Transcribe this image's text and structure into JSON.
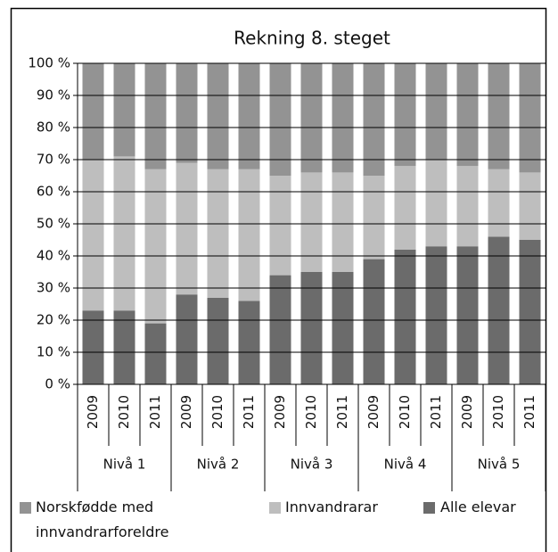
{
  "chart_data": {
    "type": "stacked_bar",
    "title": "Rekning 8. steget",
    "categories": [
      "2009",
      "2010",
      "2011",
      "2009",
      "2010",
      "2011",
      "2009",
      "2010",
      "2011",
      "2009",
      "2010",
      "2011",
      "2009",
      "2010",
      "2011"
    ],
    "groups": [
      "Nivå 1",
      "Nivå 2",
      "Nivå 3",
      "Nivå 4",
      "Nivå 5"
    ],
    "series": [
      {
        "name": "Norskfødde med innvandrarforeldre",
        "color": "#939393",
        "values": [
          30,
          29,
          33,
          31,
          33,
          33,
          35,
          34,
          34,
          35,
          32,
          30,
          32,
          33,
          34
        ]
      },
      {
        "name": "Innvandrarar",
        "color": "#bebebe",
        "values": [
          47,
          48,
          48,
          41,
          40,
          41,
          31,
          31,
          31,
          26,
          26,
          27,
          25,
          21,
          21
        ]
      },
      {
        "name": "Alle elevar",
        "color": "#6b6b6b",
        "values": [
          23,
          23,
          19,
          28,
          27,
          26,
          34,
          35,
          35,
          39,
          42,
          43,
          43,
          46,
          45
        ]
      }
    ],
    "ylim": [
      0,
      100
    ],
    "yticks": [
      {
        "value": 0,
        "label": "0 %"
      },
      {
        "value": 10,
        "label": "10 %"
      },
      {
        "value": 20,
        "label": "20 %"
      },
      {
        "value": 30,
        "label": "30 %"
      },
      {
        "value": 40,
        "label": "40 %"
      },
      {
        "value": 50,
        "label": "50 %"
      },
      {
        "value": 60,
        "label": "60 %"
      },
      {
        "value": 70,
        "label": "70 %"
      },
      {
        "value": 80,
        "label": "80 %"
      },
      {
        "value": 90,
        "label": "90 %"
      },
      {
        "value": 100,
        "label": "100 %"
      }
    ],
    "grid": true
  }
}
